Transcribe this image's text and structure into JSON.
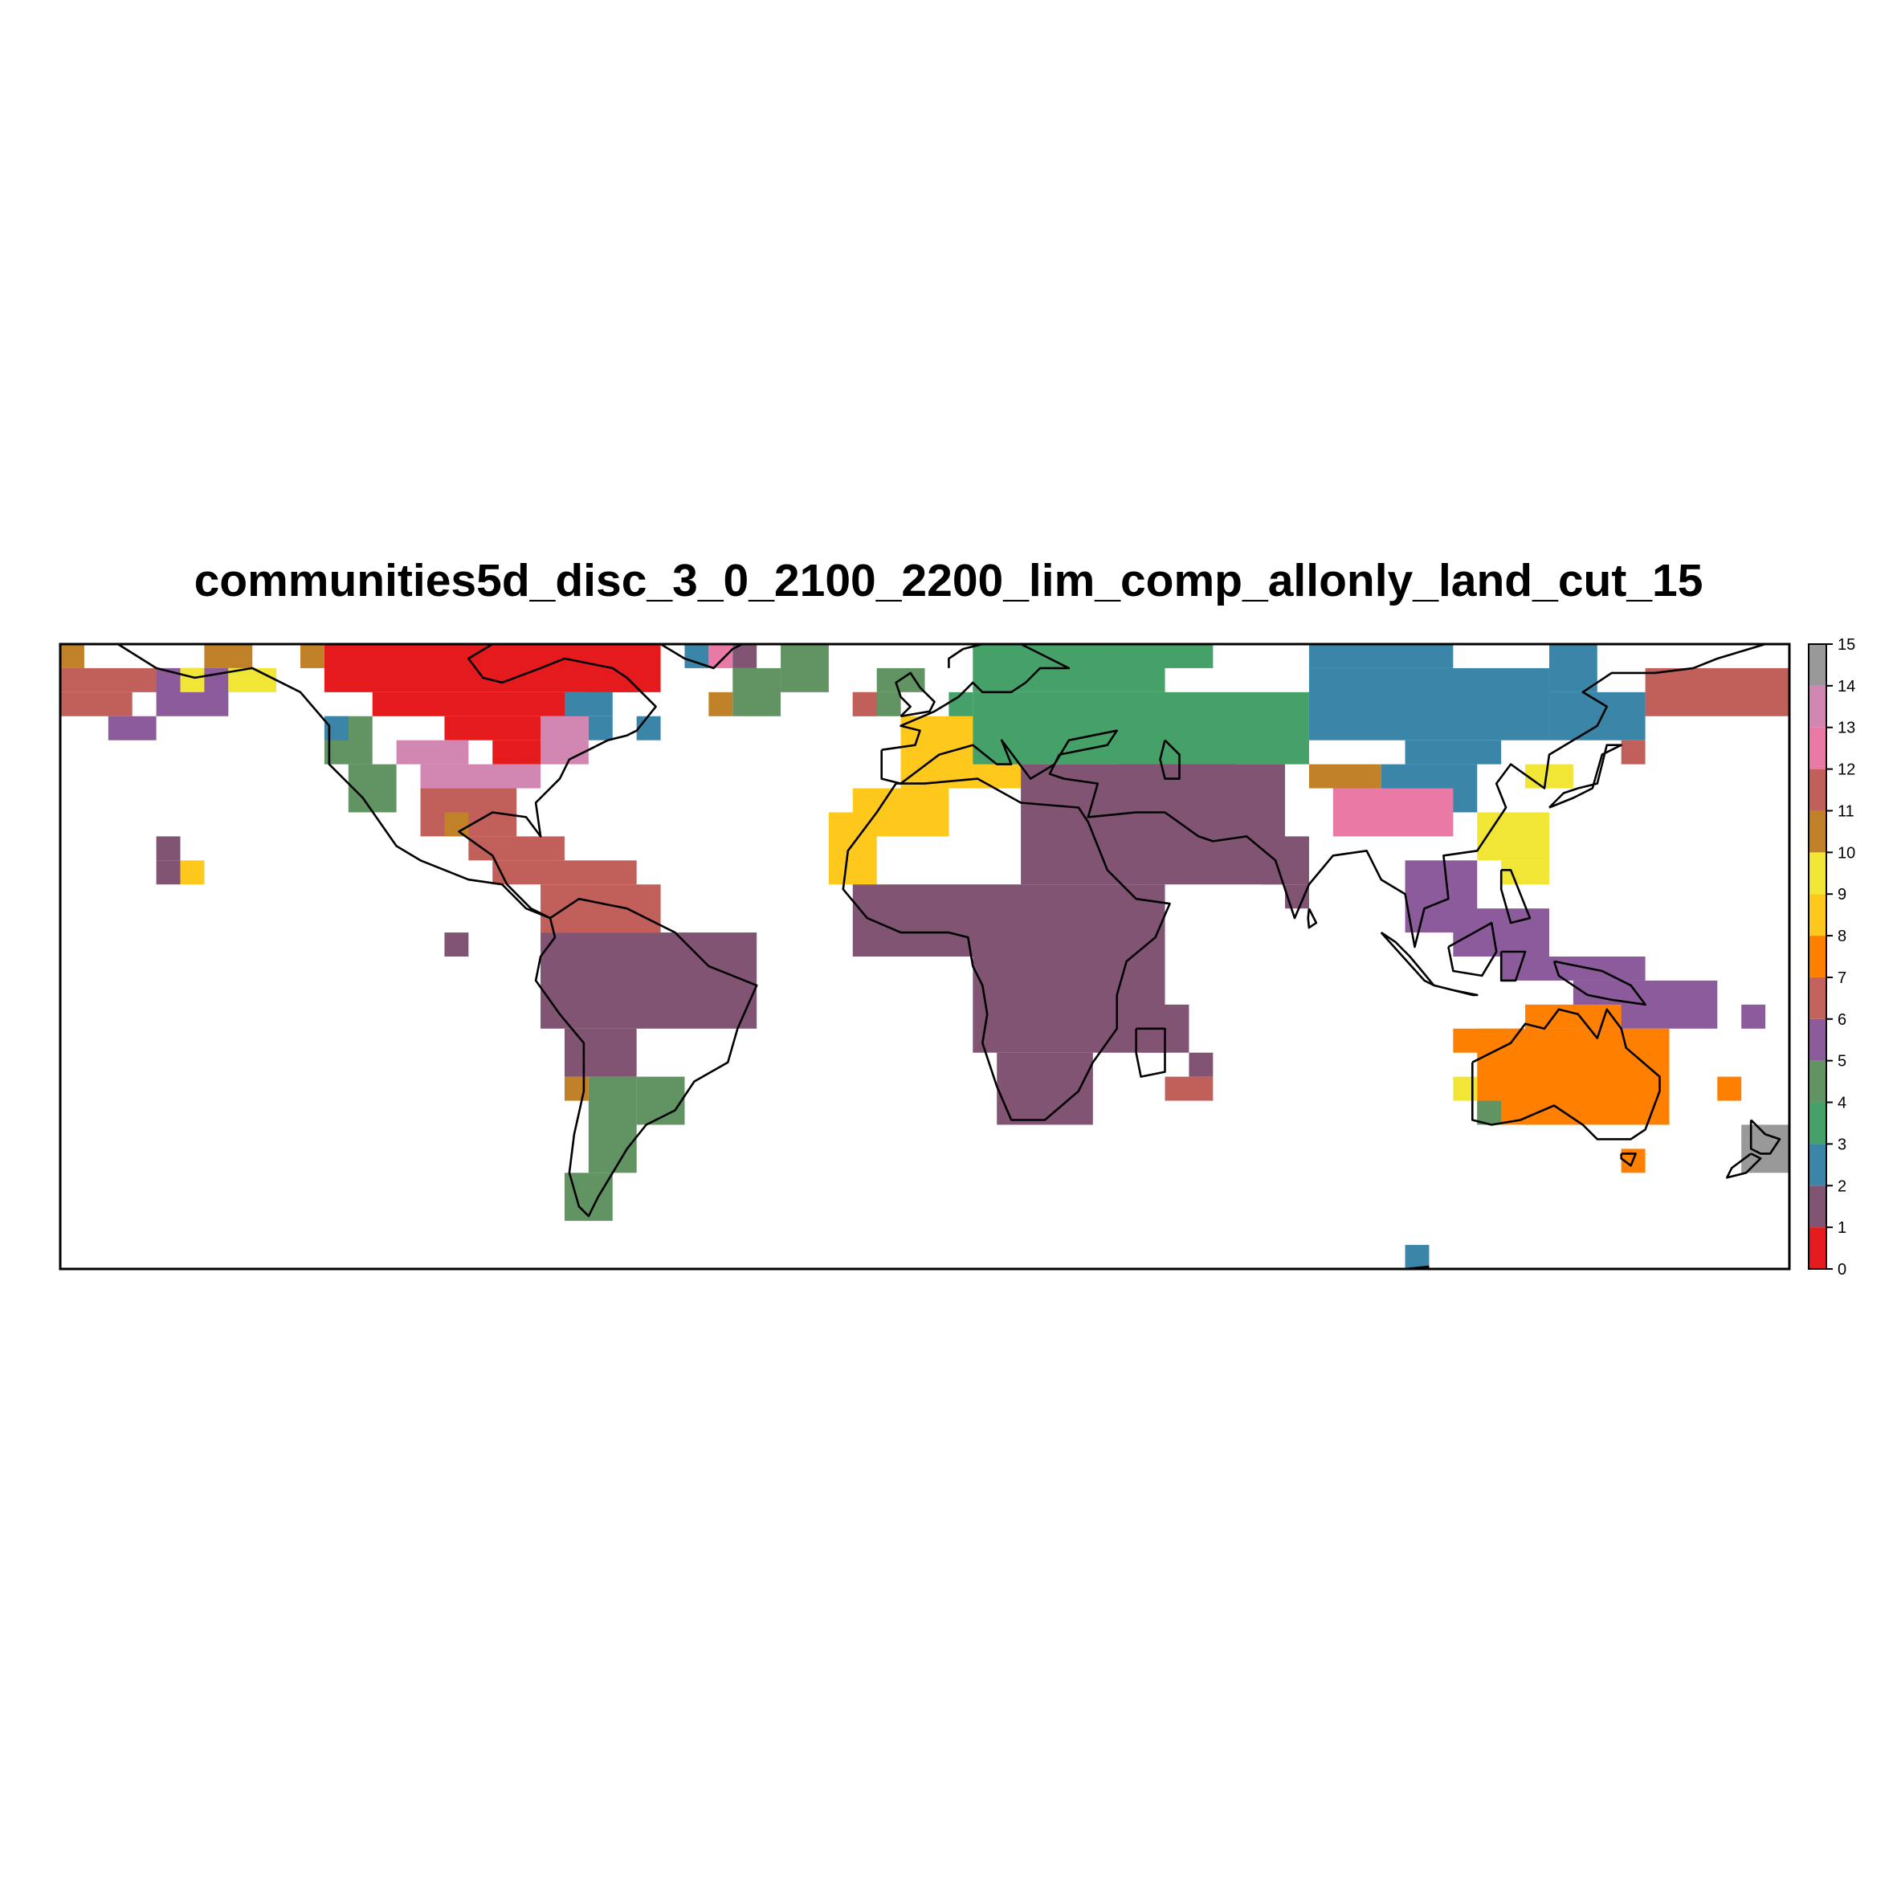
{
  "title": "communities5d_disc_3_0_2100_2200_lim_comp_allonly_land_cut_15",
  "legend": {
    "min": 0,
    "max": 15,
    "ticks": [
      "0",
      "1",
      "2",
      "3",
      "4",
      "5",
      "6",
      "7",
      "8",
      "9",
      "10",
      "11",
      "12",
      "13",
      "14",
      "15"
    ],
    "colors": [
      {
        "community": 1,
        "color": "#E41A1C"
      },
      {
        "community": 2,
        "color": "#815474"
      },
      {
        "community": 3,
        "color": "#3A85A8"
      },
      {
        "community": 4,
        "color": "#46A169"
      },
      {
        "community": 5,
        "color": "#629363"
      },
      {
        "community": 6,
        "color": "#8C5B9C"
      },
      {
        "community": 7,
        "color": "#C4625D"
      },
      {
        "community": 8,
        "color": "#FF7F00"
      },
      {
        "community": 9,
        "color": "#FFC81D"
      },
      {
        "community": 10,
        "color": "#F1E535"
      },
      {
        "community": 11,
        "color": "#C08128"
      },
      {
        "community": 12,
        "color": "#C1605B"
      },
      {
        "community": 13,
        "color": "#E97AA5"
      },
      {
        "community": 14,
        "color": "#D287B2"
      },
      {
        "community": 15,
        "color": "#999999"
      }
    ]
  },
  "map": {
    "type": "heatmap",
    "projection": "equirectangular",
    "lon_range": [
      -180,
      180
    ],
    "lat_range": [
      -65,
      65
    ],
    "cell_size_deg": 5,
    "background": "#ffffff",
    "border_color": "#000000"
  }
}
